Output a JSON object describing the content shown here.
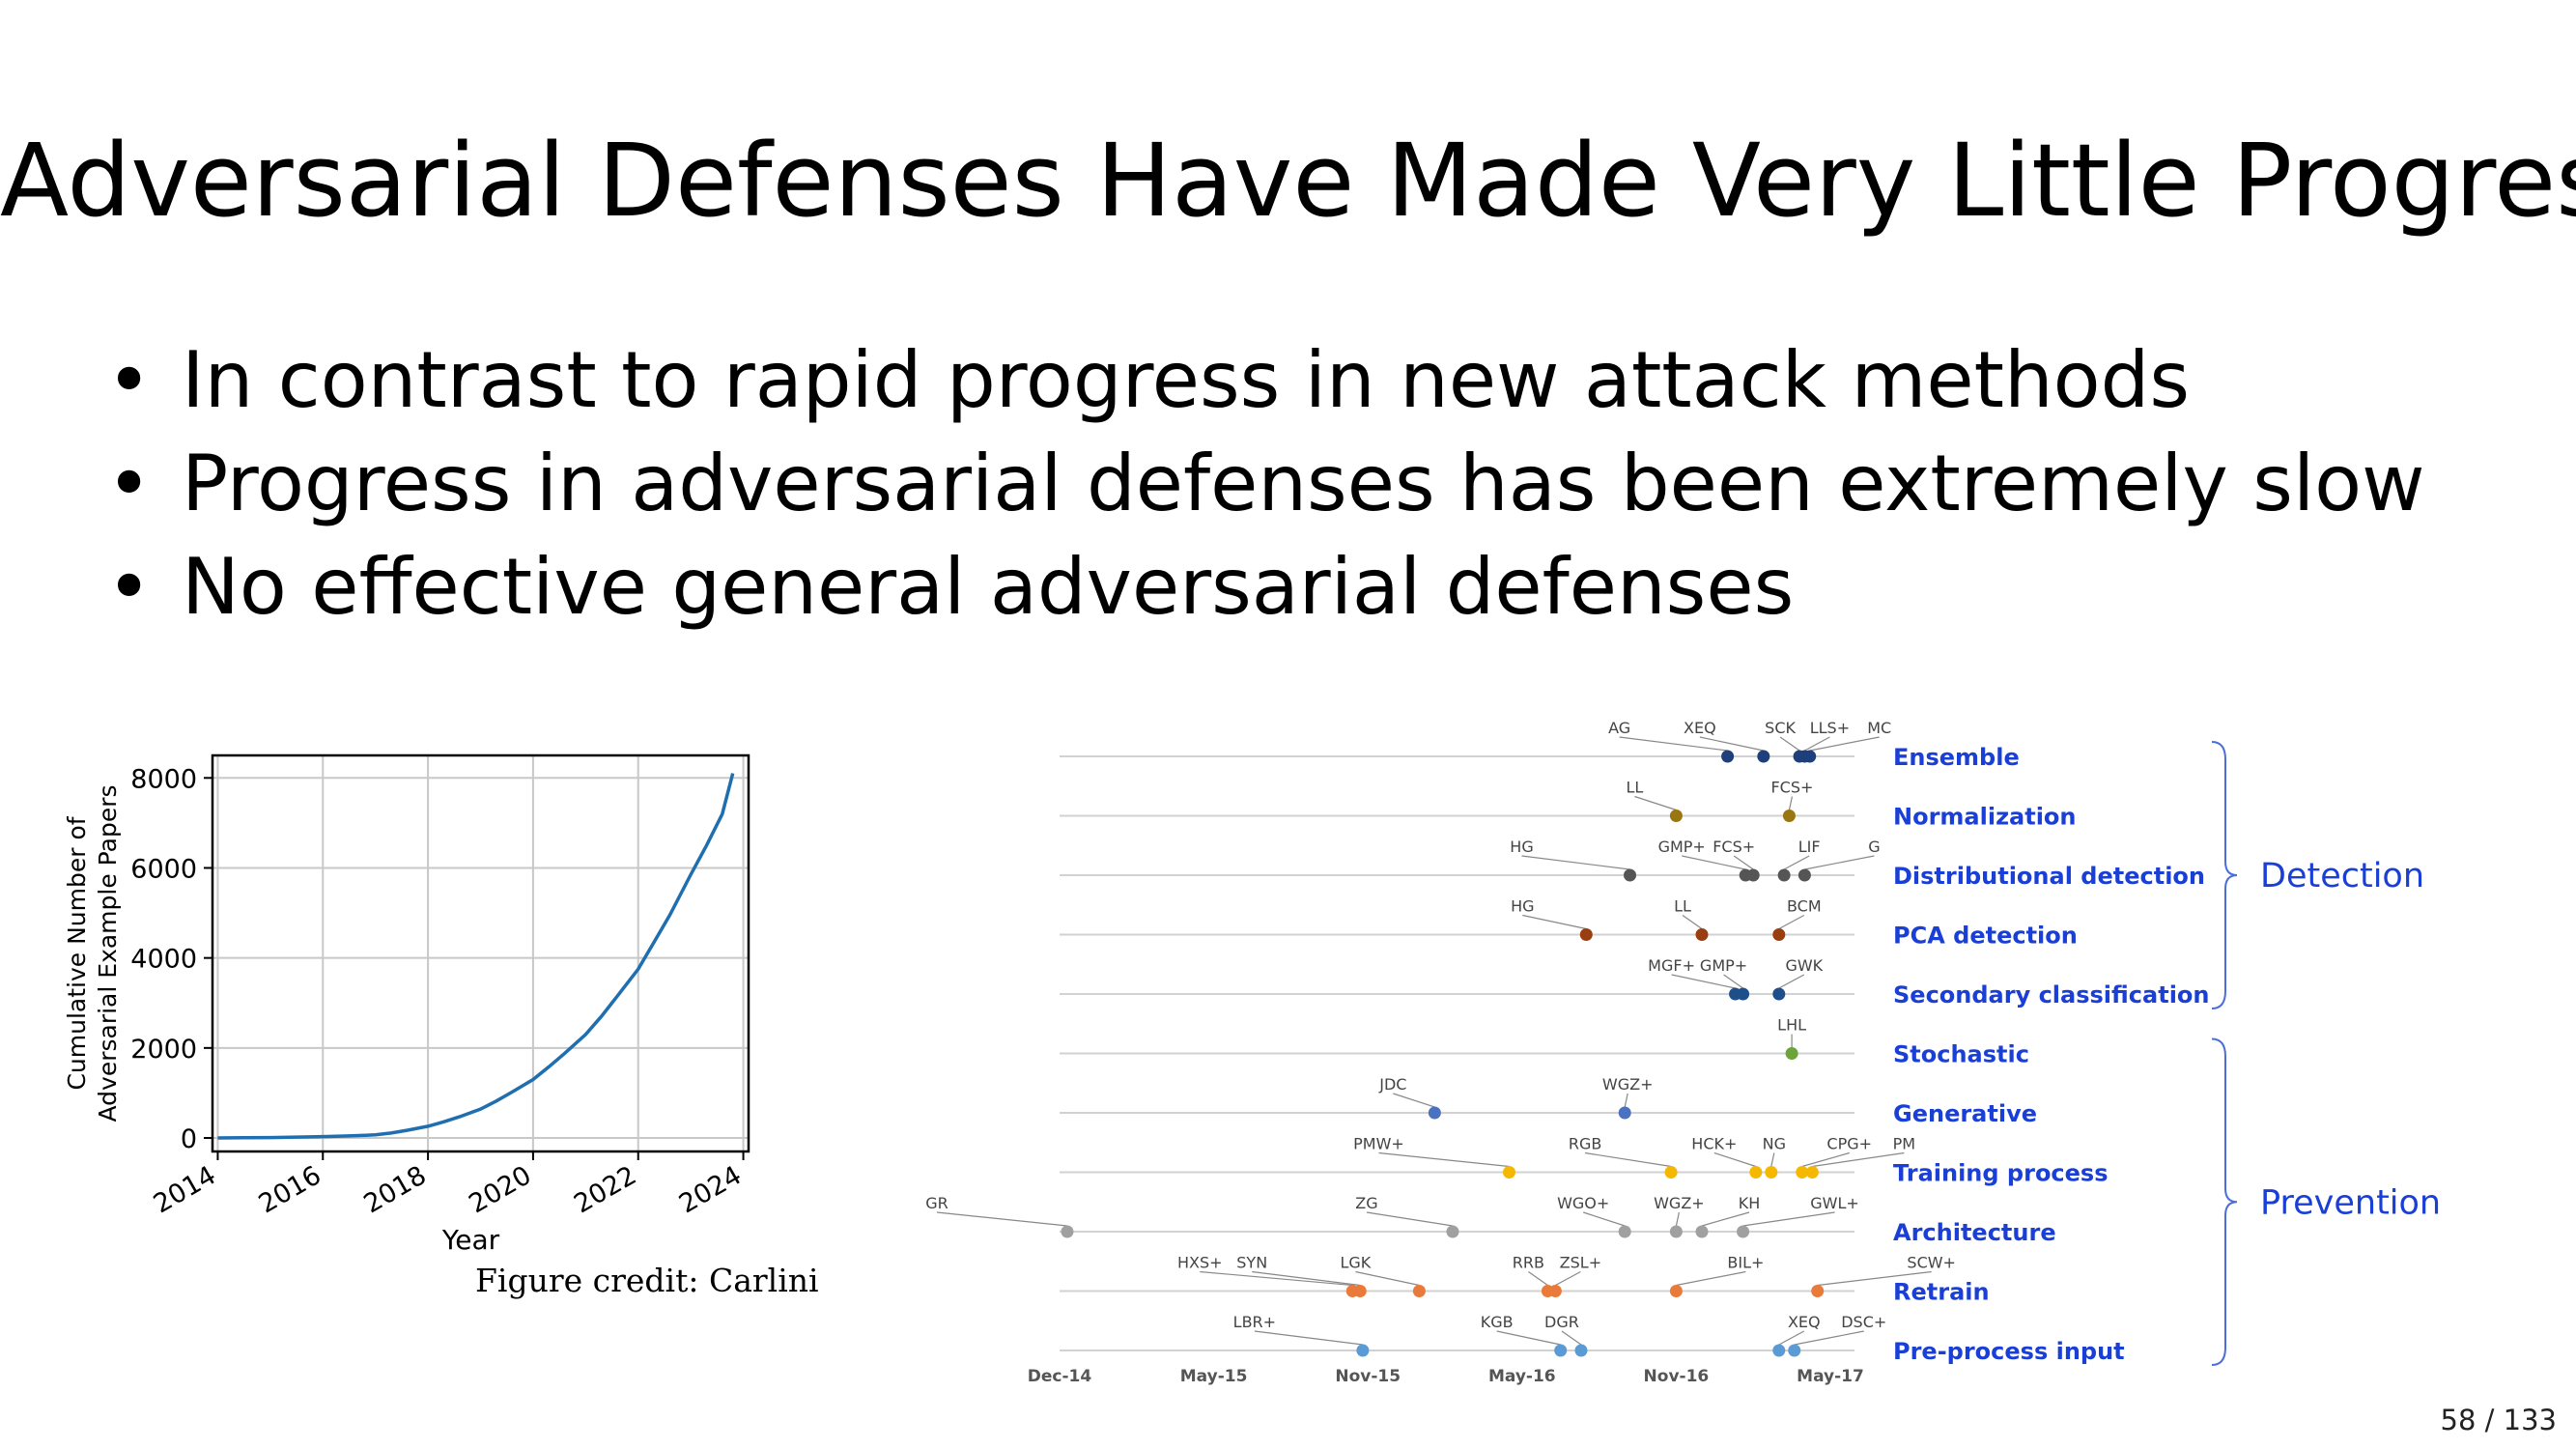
{
  "slide": {
    "title": "Adversarial Defenses Have Made Very Little Progress",
    "bullets": [
      "In contrast to rapid progress in new attack methods",
      "Progress in adversarial defenses has been extremely slow",
      "No effective general adversarial defenses"
    ],
    "credit": "Figure credit: Carlini",
    "page": "58 / 133"
  },
  "chart_data": [
    {
      "type": "line",
      "title": "",
      "xlabel": "Year",
      "ylabel": "Cumulative Number of Adversarial Example Papers",
      "xlim": [
        2013.9,
        2024.1
      ],
      "ylim": [
        -300,
        8500
      ],
      "xticks": [
        2014,
        2016,
        2018,
        2020,
        2022,
        2024
      ],
      "yticks": [
        0,
        2000,
        4000,
        6000,
        8000
      ],
      "grid": true,
      "color": "#1f6fb0",
      "series": [
        {
          "x": [
            2014,
            2014.5,
            2015,
            2015.5,
            2016,
            2016.5,
            2017,
            2017.3,
            2017.6,
            2018,
            2018.3,
            2018.6,
            2019,
            2019.3,
            2019.6,
            2020,
            2020.3,
            2020.6,
            2021,
            2021.3,
            2021.6,
            2022,
            2022.3,
            2022.6,
            2023,
            2023.3,
            2023.6,
            2023.8
          ],
          "y": [
            0,
            5,
            10,
            20,
            30,
            45,
            70,
            110,
            170,
            260,
            360,
            470,
            640,
            820,
            1020,
            1300,
            1580,
            1880,
            2300,
            2700,
            3150,
            3750,
            4350,
            4950,
            5850,
            6500,
            7200,
            8100
          ]
        }
      ]
    },
    {
      "type": "scatter",
      "x_tick_labels": [
        "Dec-14",
        "May-15",
        "Nov-15",
        "May-16",
        "Nov-16",
        "May-17"
      ],
      "xlim": [
        0,
        30
      ],
      "categories": [
        "Ensemble",
        "Normalization",
        "Distributional detection",
        "PCA detection",
        "Secondary classification",
        "Stochastic",
        "Generative",
        "Training process",
        "Architecture",
        "Retrain",
        "Pre-process input"
      ],
      "groups": [
        {
          "name": "Detection",
          "rows": [
            0,
            4
          ]
        },
        {
          "name": "Prevention",
          "rows": [
            5,
            10
          ]
        }
      ],
      "colors": [
        "#1e3f7a",
        "#9a7612",
        "#555555",
        "#9a3d10",
        "#1f4f8a",
        "#6aa43a",
        "#4a72c0",
        "#f5b800",
        "#a0a0a0",
        "#ea7a3a",
        "#5b9bd5"
      ],
      "series": [
        {
          "name": "Ensemble",
          "points": [
            {
              "x": 26.0,
              "label": "AG"
            },
            {
              "x": 27.4,
              "label": "XEQ"
            },
            {
              "x": 28.8,
              "label": "SCK"
            },
            {
              "x": 29.0,
              "label": "LLS+"
            },
            {
              "x": 29.2,
              "label": "MC"
            }
          ]
        },
        {
          "name": "Normalization",
          "points": [
            {
              "x": 24.0,
              "label": "LL"
            },
            {
              "x": 28.4,
              "label": "FCS+"
            }
          ]
        },
        {
          "name": "Distributional detection",
          "points": [
            {
              "x": 22.2,
              "label": "HG"
            },
            {
              "x": 26.7,
              "label": "GMP+"
            },
            {
              "x": 27.0,
              "label": "FCS+"
            },
            {
              "x": 28.2,
              "label": "LIF"
            },
            {
              "x": 29.0,
              "label": "G"
            }
          ]
        },
        {
          "name": "PCA detection",
          "points": [
            {
              "x": 20.5,
              "label": "HG"
            },
            {
              "x": 25.0,
              "label": "LL"
            },
            {
              "x": 28.0,
              "label": "BCM"
            }
          ]
        },
        {
          "name": "Secondary classification",
          "points": [
            {
              "x": 26.3,
              "label": "MGF+"
            },
            {
              "x": 26.6,
              "label": "GMP+"
            },
            {
              "x": 28.0,
              "label": "GWK"
            }
          ]
        },
        {
          "name": "Stochastic",
          "points": [
            {
              "x": 28.5,
              "label": "LHL"
            }
          ]
        },
        {
          "name": "Generative",
          "points": [
            {
              "x": 14.6,
              "label": "JDC"
            },
            {
              "x": 22.0,
              "label": "WGZ+"
            }
          ]
        },
        {
          "name": "Training process",
          "points": [
            {
              "x": 17.5,
              "label": "PMW+"
            },
            {
              "x": 23.8,
              "label": "RGB"
            },
            {
              "x": 27.1,
              "label": "HCK+"
            },
            {
              "x": 27.7,
              "label": "NG"
            },
            {
              "x": 28.9,
              "label": "CPG+"
            },
            {
              "x": 29.3,
              "label": "PM"
            }
          ]
        },
        {
          "name": "Architecture",
          "points": [
            {
              "x": 0.3,
              "label": "GR"
            },
            {
              "x": 15.3,
              "label": "ZG"
            },
            {
              "x": 22.0,
              "label": "WGO+"
            },
            {
              "x": 24.0,
              "label": "WGZ+"
            },
            {
              "x": 25.0,
              "label": "KH"
            },
            {
              "x": 26.6,
              "label": "GWL+"
            }
          ]
        },
        {
          "name": "Retrain",
          "points": [
            {
              "x": 11.4,
              "label": "HXS+"
            },
            {
              "x": 11.7,
              "label": "SYN"
            },
            {
              "x": 14.0,
              "label": "LGK"
            },
            {
              "x": 19.0,
              "label": "RRB"
            },
            {
              "x": 19.3,
              "label": "ZSL+"
            },
            {
              "x": 24.0,
              "label": "BIL+"
            },
            {
              "x": 29.5,
              "label": "SCW+"
            }
          ]
        },
        {
          "name": "Pre-process input",
          "points": [
            {
              "x": 11.8,
              "label": "LBR+"
            },
            {
              "x": 19.5,
              "label": "KGB"
            },
            {
              "x": 20.3,
              "label": "DGR"
            },
            {
              "x": 28.0,
              "label": "XEQ"
            },
            {
              "x": 28.6,
              "label": "DSC+"
            }
          ]
        }
      ]
    }
  ]
}
